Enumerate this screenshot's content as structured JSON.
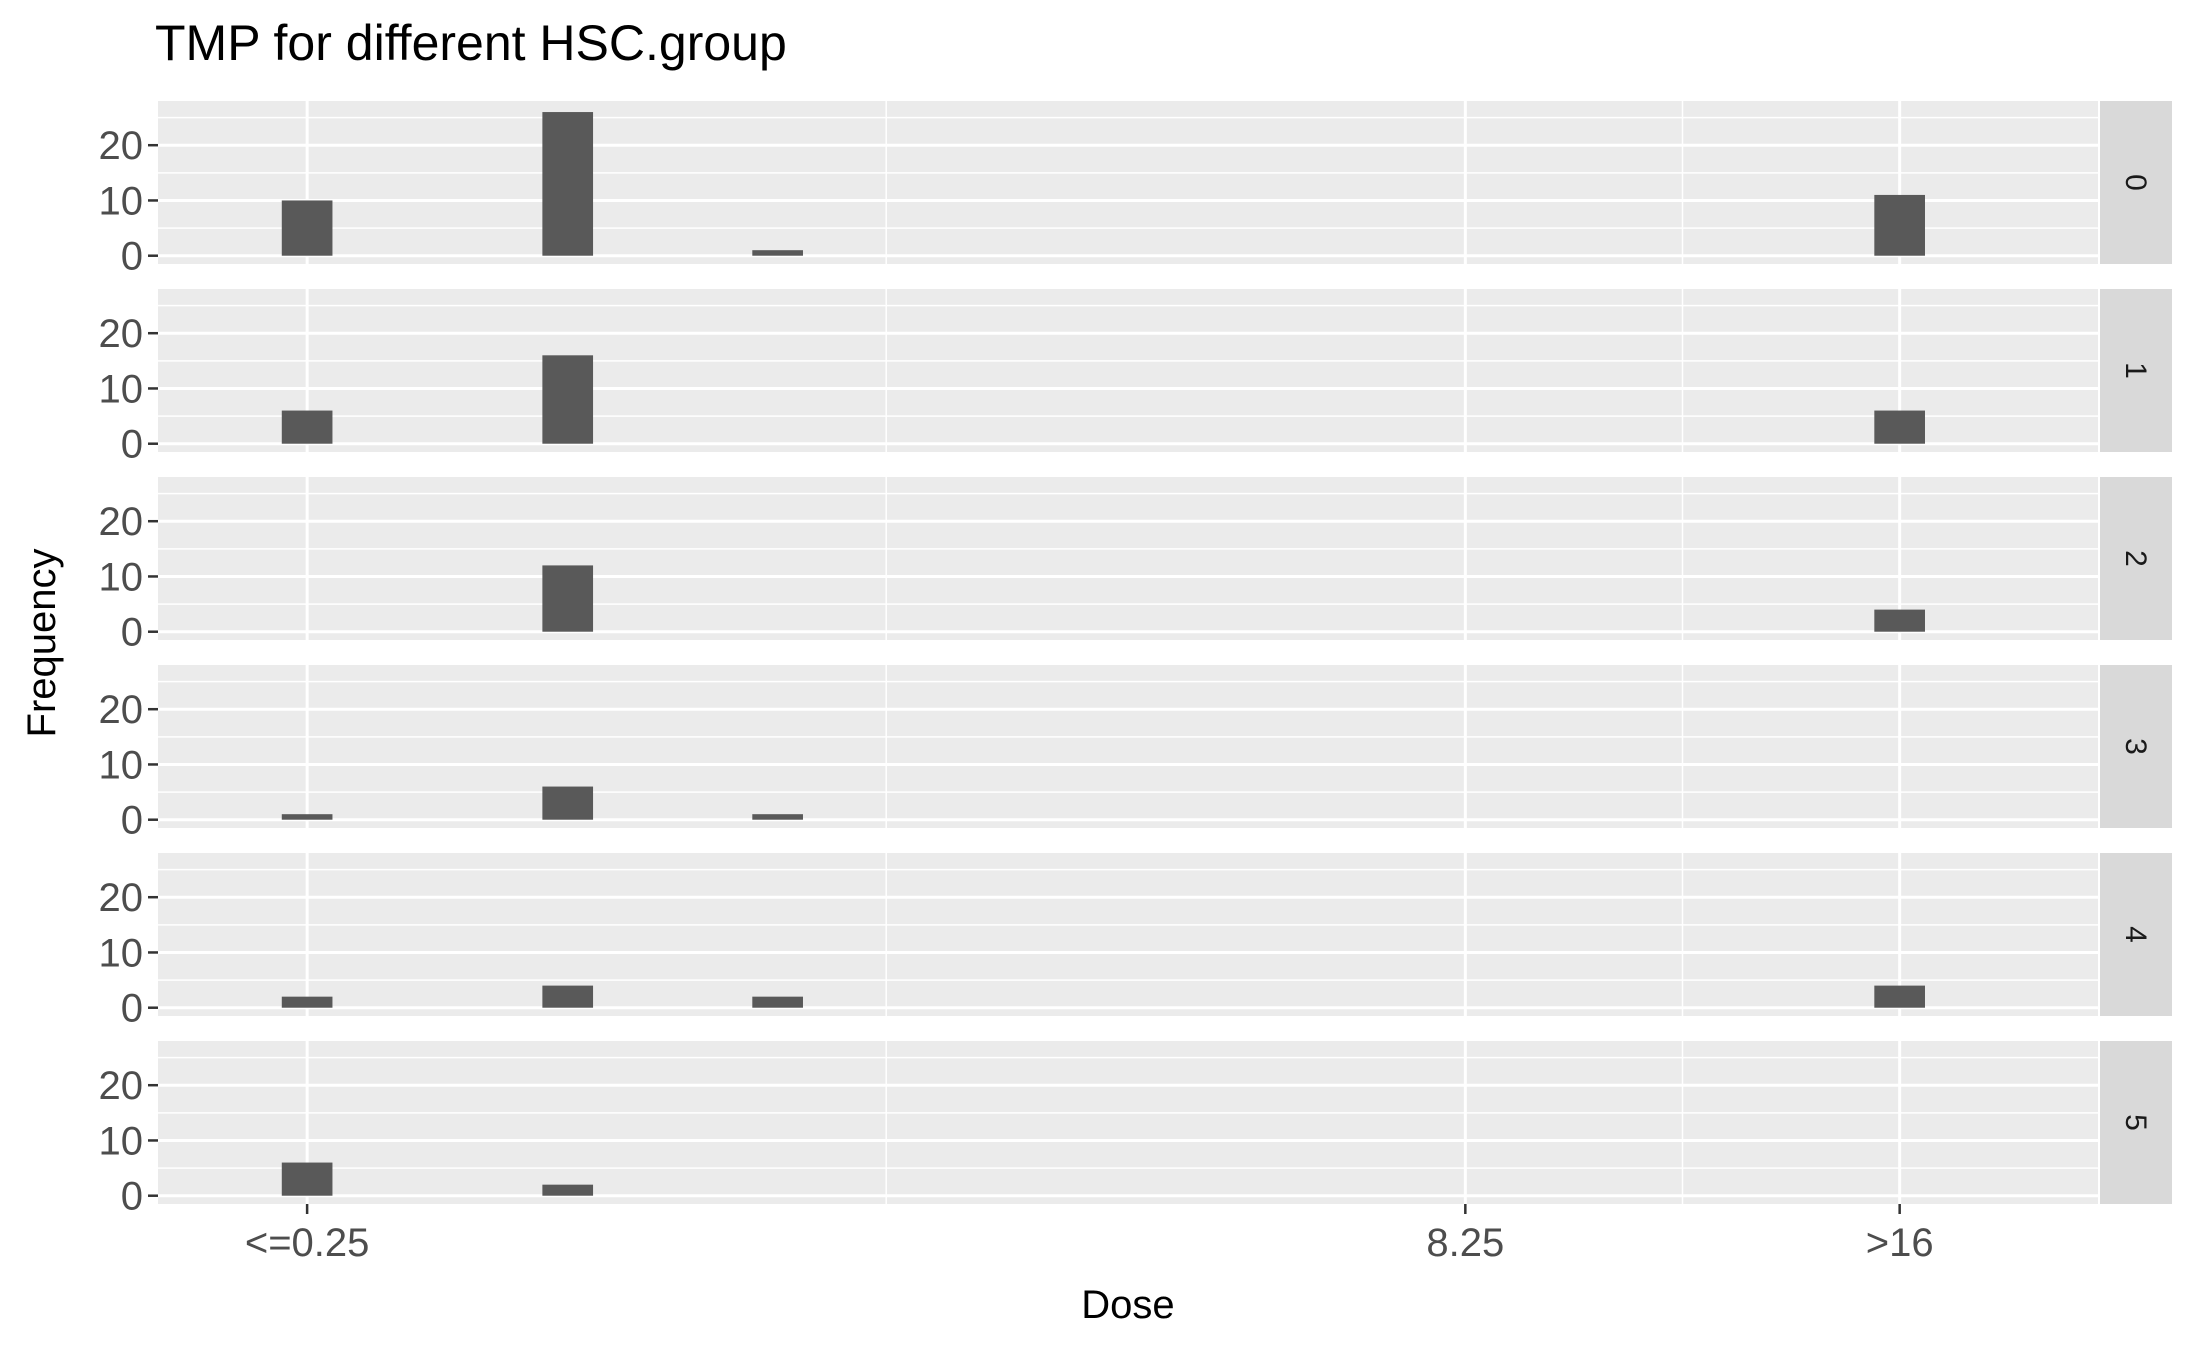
{
  "chart_data": {
    "type": "bar",
    "title": "TMP for different HSC.group",
    "xlabel": "Dose",
    "ylabel": "Frequency",
    "x_ticks": [
      {
        "label": "<=0.25",
        "x": 0.25
      },
      {
        "label": "8.25",
        "x": 8.25
      },
      {
        "label": ">16",
        "x": 11.25
      }
    ],
    "y_ticks": [
      0,
      10,
      20
    ],
    "xlim": [
      -0.78,
      12.62
    ],
    "ylim": [
      -1.5,
      28
    ],
    "bar_x": [
      0.25,
      2.05,
      3.5,
      11.25
    ],
    "bar_width": 0.35,
    "facets": [
      {
        "label": "0",
        "values": [
          10,
          26,
          1,
          11
        ]
      },
      {
        "label": "1",
        "values": [
          6,
          16,
          0,
          6
        ]
      },
      {
        "label": "2",
        "values": [
          0,
          12,
          0,
          4
        ]
      },
      {
        "label": "3",
        "values": [
          1,
          6,
          1,
          0
        ]
      },
      {
        "label": "4",
        "values": [
          2,
          4,
          2,
          4
        ]
      },
      {
        "label": "5",
        "values": [
          6,
          2,
          0,
          0
        ]
      }
    ],
    "grid": true,
    "legend": "none",
    "colors": {
      "bar": "#595959",
      "panel": "#ebebeb",
      "strip": "#d9d9d9",
      "grid": "#ffffff",
      "text": "#4d4d4d",
      "title": "#000000"
    }
  }
}
